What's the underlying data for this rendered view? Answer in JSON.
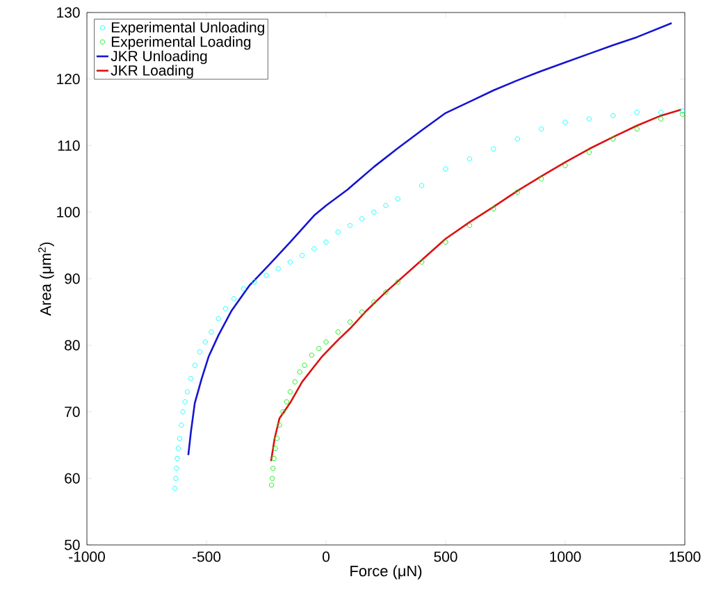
{
  "chart_data": {
    "type": "scatter",
    "xlabel": "Force (μN)",
    "ylabel": "Area (μm$^{2}$)",
    "xlim": [
      -1000,
      1500
    ],
    "ylim": [
      50,
      130
    ],
    "xticks": [
      -1000,
      -500,
      0,
      500,
      1000,
      1500
    ],
    "yticks": [
      50,
      60,
      70,
      80,
      90,
      100,
      110,
      120,
      130
    ],
    "legend": "top left",
    "series": [
      {
        "name": "Experimental Unloading",
        "marker": "circle",
        "color": "#00ffff",
        "x": [
          -632,
          -628,
          -625,
          -622,
          -618,
          -612,
          -605,
          -598,
          -590,
          -580,
          -565,
          -548,
          -528,
          -505,
          -480,
          -450,
          -420,
          -385,
          -345,
          -300,
          -250,
          -200,
          -150,
          -100,
          -50,
          0,
          50,
          100,
          150,
          200,
          250,
          300,
          400,
          500,
          600,
          700,
          800,
          900,
          1000,
          1100,
          1200,
          1300,
          1400,
          1490
        ],
        "values": [
          58.5,
          60,
          61.5,
          63,
          64.5,
          66,
          68,
          70,
          71.5,
          73,
          75,
          77,
          79,
          80.5,
          82,
          84,
          85.5,
          87,
          88.5,
          89.5,
          90.5,
          91.5,
          92.5,
          93.5,
          94.5,
          95.5,
          97,
          98,
          99,
          100,
          101,
          102,
          104,
          106.5,
          108,
          109.5,
          111,
          112.5,
          113.5,
          114,
          114.5,
          115,
          115,
          115.2
        ]
      },
      {
        "name": "Experimental Loading",
        "marker": "circle",
        "color": "#00ee00",
        "x": [
          -228,
          -225,
          -222,
          -218,
          -212,
          -205,
          -195,
          -180,
          -165,
          -150,
          -130,
          -110,
          -90,
          -60,
          -30,
          0,
          50,
          100,
          150,
          200,
          250,
          300,
          400,
          500,
          600,
          700,
          800,
          900,
          1000,
          1100,
          1200,
          1300,
          1400,
          1490
        ],
        "values": [
          59,
          60,
          61.5,
          63,
          64.5,
          66,
          68,
          70,
          71.5,
          73,
          74.5,
          76,
          77,
          78.5,
          79.5,
          80.5,
          82,
          83.5,
          85,
          86.5,
          88,
          89.5,
          92.5,
          95.5,
          98,
          100.5,
          103,
          105,
          107,
          109,
          111,
          112.5,
          114,
          114.7
        ]
      },
      {
        "name": "JKR Unloading",
        "type": "line",
        "color": "#1414d2",
        "x": [
          -576,
          -565,
          -549,
          -520,
          -491,
          -450,
          -395,
          -320,
          -235,
          -150,
          -50,
          0,
          90,
          200,
          300,
          400,
          500,
          600,
          700,
          800,
          900,
          1000,
          1100,
          1200,
          1300,
          1445
        ],
        "values": [
          63.5,
          67,
          71.3,
          75,
          78.3,
          81.5,
          85.2,
          89,
          92.2,
          95.5,
          99.5,
          101,
          103.4,
          106.8,
          109.6,
          112.3,
          114.9,
          116.6,
          118.3,
          119.8,
          121.2,
          122.5,
          123.8,
          125.1,
          126.3,
          128.4
        ]
      },
      {
        "name": "JKR Loading",
        "type": "line",
        "color": "#dd1010",
        "x": [
          -230,
          -215,
          -195,
          -151,
          -100,
          -17,
          50,
          100,
          169,
          250,
          381,
          500,
          600,
          700,
          800,
          900,
          1000,
          1100,
          1200,
          1300,
          1400,
          1485
        ],
        "values": [
          62.6,
          66,
          69,
          71.3,
          74.5,
          78.3,
          80.8,
          82.5,
          85.2,
          88,
          92.2,
          96,
          98.5,
          100.8,
          103.2,
          105.4,
          107.5,
          109.5,
          111.3,
          113,
          114.5,
          115.4
        ]
      }
    ]
  }
}
